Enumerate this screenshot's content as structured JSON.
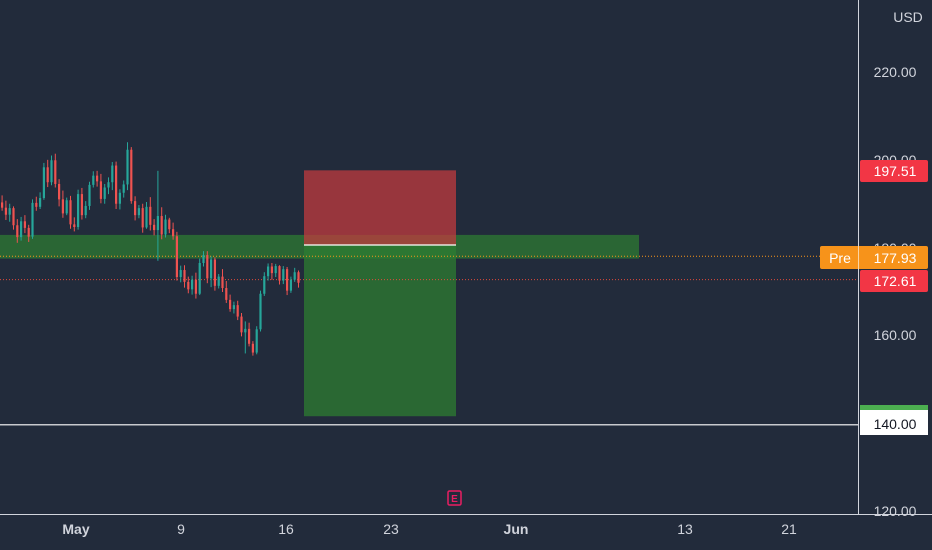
{
  "chart_data": {
    "type": "candlestick",
    "currency": "USD",
    "y_ticks": [
      "220.00",
      "200.00",
      "180.00",
      "160.00",
      "120.00"
    ],
    "x_ticks": [
      "May",
      "9",
      "16",
      "23",
      "Jun",
      "13",
      "21"
    ],
    "price_labels": {
      "stop": "197.51",
      "pre_label": "Pre",
      "pre_value": "177.93",
      "last": "172.61",
      "target": "140.00"
    },
    "event_marker": "E",
    "levels": {
      "stop": 197.51,
      "entry": 180.5,
      "target": 141.5,
      "horizontal_line": 140.0,
      "pre": 177.93,
      "last": 172.61
    },
    "zone": {
      "top": 182.8,
      "bottom": 177.4
    },
    "candles": [
      {
        "o": 190.2,
        "h": 191.8,
        "l": 188.3,
        "c": 189.0
      },
      {
        "o": 189.0,
        "h": 190.6,
        "l": 186.2,
        "c": 187.4
      },
      {
        "o": 187.4,
        "h": 189.9,
        "l": 185.8,
        "c": 188.9
      },
      {
        "o": 188.9,
        "h": 189.3,
        "l": 184.0,
        "c": 185.0
      },
      {
        "o": 185.0,
        "h": 186.4,
        "l": 181.0,
        "c": 182.3
      },
      {
        "o": 182.3,
        "h": 186.9,
        "l": 181.5,
        "c": 185.9
      },
      {
        "o": 185.9,
        "h": 187.3,
        "l": 183.2,
        "c": 184.4
      },
      {
        "o": 184.4,
        "h": 185.1,
        "l": 181.2,
        "c": 182.4
      },
      {
        "o": 182.4,
        "h": 190.9,
        "l": 181.9,
        "c": 190.1
      },
      {
        "o": 190.1,
        "h": 191.5,
        "l": 188.3,
        "c": 189.2
      },
      {
        "o": 189.2,
        "h": 192.5,
        "l": 188.7,
        "c": 191.2
      },
      {
        "o": 191.2,
        "h": 199.2,
        "l": 190.8,
        "c": 198.2
      },
      {
        "o": 198.2,
        "h": 199.9,
        "l": 193.7,
        "c": 194.8
      },
      {
        "o": 194.8,
        "h": 200.9,
        "l": 194.1,
        "c": 199.8
      },
      {
        "o": 199.8,
        "h": 201.3,
        "l": 193.6,
        "c": 194.4
      },
      {
        "o": 194.4,
        "h": 195.5,
        "l": 189.3,
        "c": 190.9
      },
      {
        "o": 190.9,
        "h": 192.9,
        "l": 186.7,
        "c": 187.7
      },
      {
        "o": 187.7,
        "h": 191.3,
        "l": 187.3,
        "c": 190.7
      },
      {
        "o": 190.7,
        "h": 191.7,
        "l": 184.2,
        "c": 185.2
      },
      {
        "o": 185.2,
        "h": 186.8,
        "l": 183.6,
        "c": 184.6
      },
      {
        "o": 184.6,
        "h": 193.1,
        "l": 184.0,
        "c": 192.1
      },
      {
        "o": 192.1,
        "h": 193.5,
        "l": 186.3,
        "c": 187.3
      },
      {
        "o": 187.3,
        "h": 190.5,
        "l": 186.6,
        "c": 189.4
      },
      {
        "o": 189.4,
        "h": 194.9,
        "l": 188.5,
        "c": 194.2
      },
      {
        "o": 194.2,
        "h": 197.3,
        "l": 193.6,
        "c": 196.3
      },
      {
        "o": 196.3,
        "h": 197.4,
        "l": 193.8,
        "c": 195.0
      },
      {
        "o": 195.0,
        "h": 196.7,
        "l": 190.0,
        "c": 191.0
      },
      {
        "o": 191.0,
        "h": 194.4,
        "l": 189.9,
        "c": 193.6
      },
      {
        "o": 193.6,
        "h": 195.9,
        "l": 192.1,
        "c": 194.8
      },
      {
        "o": 194.8,
        "h": 199.4,
        "l": 193.0,
        "c": 198.6
      },
      {
        "o": 198.6,
        "h": 199.5,
        "l": 188.7,
        "c": 189.9
      },
      {
        "o": 189.9,
        "h": 193.2,
        "l": 188.6,
        "c": 192.4
      },
      {
        "o": 192.4,
        "h": 195.2,
        "l": 191.3,
        "c": 194.3
      },
      {
        "o": 194.3,
        "h": 203.9,
        "l": 193.0,
        "c": 202.2
      },
      {
        "o": 202.2,
        "h": 202.8,
        "l": 189.9,
        "c": 190.5
      },
      {
        "o": 190.5,
        "h": 191.6,
        "l": 186.1,
        "c": 187.3
      },
      {
        "o": 187.3,
        "h": 189.6,
        "l": 186.6,
        "c": 188.9
      },
      {
        "o": 188.9,
        "h": 189.9,
        "l": 183.3,
        "c": 184.5
      },
      {
        "o": 184.5,
        "h": 190.3,
        "l": 184.2,
        "c": 189.2
      },
      {
        "o": 189.2,
        "h": 191.4,
        "l": 183.8,
        "c": 185.1
      },
      {
        "o": 185.1,
        "h": 186.4,
        "l": 182.7,
        "c": 183.9
      },
      {
        "o": 183.9,
        "h": 197.4,
        "l": 176.9,
        "c": 187.1
      },
      {
        "o": 187.1,
        "h": 189.1,
        "l": 181.8,
        "c": 182.9
      },
      {
        "o": 182.9,
        "h": 187.4,
        "l": 182.2,
        "c": 186.3
      },
      {
        "o": 186.3,
        "h": 186.7,
        "l": 183.2,
        "c": 184.1
      },
      {
        "o": 184.1,
        "h": 185.6,
        "l": 181.7,
        "c": 182.5
      },
      {
        "o": 182.5,
        "h": 183.5,
        "l": 172.4,
        "c": 173.2
      },
      {
        "o": 173.2,
        "h": 175.8,
        "l": 172.0,
        "c": 174.8
      },
      {
        "o": 174.8,
        "h": 175.9,
        "l": 170.8,
        "c": 172.1
      },
      {
        "o": 172.1,
        "h": 173.3,
        "l": 169.5,
        "c": 170.4
      },
      {
        "o": 170.4,
        "h": 173.5,
        "l": 169.2,
        "c": 172.6
      },
      {
        "o": 172.6,
        "h": 174.2,
        "l": 168.3,
        "c": 169.4
      },
      {
        "o": 169.4,
        "h": 177.4,
        "l": 169.1,
        "c": 176.4
      },
      {
        "o": 176.4,
        "h": 179.1,
        "l": 175.6,
        "c": 178.2
      },
      {
        "o": 178.2,
        "h": 179.1,
        "l": 171.8,
        "c": 172.9
      },
      {
        "o": 172.9,
        "h": 177.9,
        "l": 170.9,
        "c": 177.2
      },
      {
        "o": 177.2,
        "h": 177.7,
        "l": 170.1,
        "c": 171.2
      },
      {
        "o": 171.2,
        "h": 173.9,
        "l": 170.6,
        "c": 173.3
      },
      {
        "o": 173.3,
        "h": 175.0,
        "l": 169.8,
        "c": 170.7
      },
      {
        "o": 170.7,
        "h": 172.3,
        "l": 167.3,
        "c": 168.0
      },
      {
        "o": 168.0,
        "h": 169.2,
        "l": 165.3,
        "c": 165.9
      },
      {
        "o": 165.9,
        "h": 167.6,
        "l": 164.9,
        "c": 166.8
      },
      {
        "o": 166.8,
        "h": 167.8,
        "l": 163.4,
        "c": 164.2
      },
      {
        "o": 164.2,
        "h": 165.0,
        "l": 159.7,
        "c": 160.6
      },
      {
        "o": 160.6,
        "h": 163.1,
        "l": 155.8,
        "c": 161.4
      },
      {
        "o": 161.4,
        "h": 162.8,
        "l": 157.4,
        "c": 158.0
      },
      {
        "o": 158.0,
        "h": 158.6,
        "l": 155.3,
        "c": 156.0
      },
      {
        "o": 156.0,
        "h": 162.0,
        "l": 155.6,
        "c": 161.3
      },
      {
        "o": 161.3,
        "h": 170.1,
        "l": 160.8,
        "c": 169.4
      },
      {
        "o": 169.4,
        "h": 174.3,
        "l": 168.9,
        "c": 173.4
      },
      {
        "o": 173.4,
        "h": 176.3,
        "l": 172.4,
        "c": 175.6
      },
      {
        "o": 175.6,
        "h": 176.4,
        "l": 172.6,
        "c": 174.1
      },
      {
        "o": 174.1,
        "h": 176.2,
        "l": 173.2,
        "c": 175.7
      },
      {
        "o": 175.7,
        "h": 175.9,
        "l": 171.5,
        "c": 172.4
      },
      {
        "o": 172.4,
        "h": 175.7,
        "l": 171.6,
        "c": 175.0
      },
      {
        "o": 175.0,
        "h": 175.5,
        "l": 169.1,
        "c": 170.1
      },
      {
        "o": 170.1,
        "h": 173.3,
        "l": 169.6,
        "c": 172.6
      },
      {
        "o": 172.6,
        "h": 175.3,
        "l": 172.1,
        "c": 174.3
      },
      {
        "o": 174.3,
        "h": 174.7,
        "l": 170.8,
        "c": 171.9
      }
    ]
  }
}
